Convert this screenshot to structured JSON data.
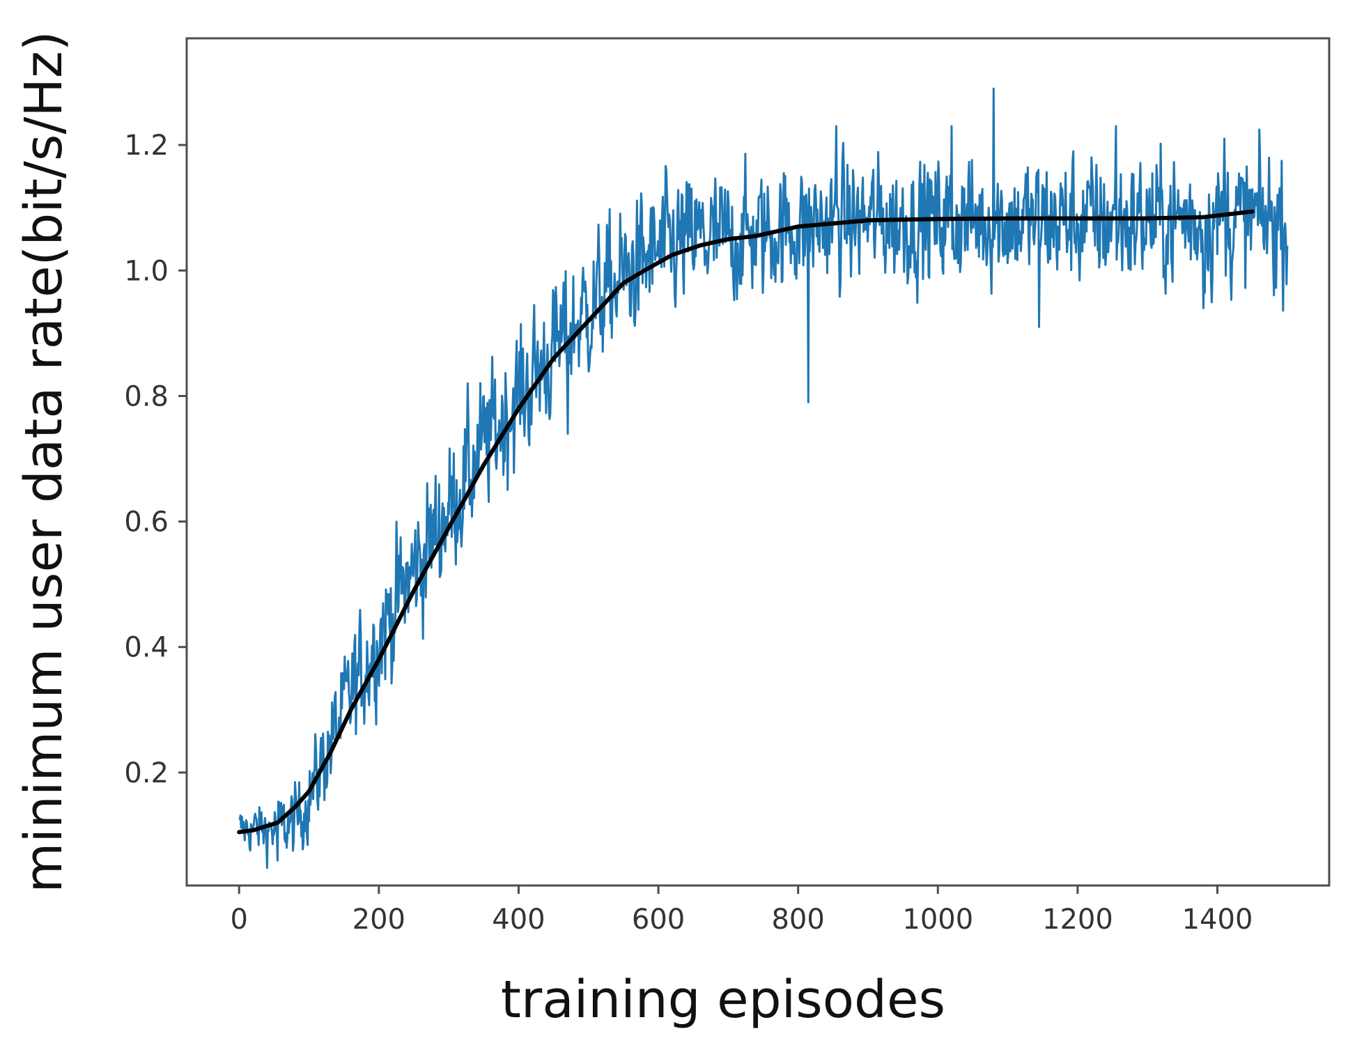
{
  "chart_data": {
    "type": "line",
    "xlabel": "training episodes",
    "ylabel": "minimum user data rate(bit/s/Hz)",
    "xlim": [
      -75,
      1560
    ],
    "ylim": [
      0.02,
      1.37
    ],
    "xticks": [
      0,
      200,
      400,
      600,
      800,
      1000,
      1200,
      1400
    ],
    "xtick_labels": [
      "0",
      "200",
      "400",
      "600",
      "800",
      "1000",
      "1200",
      "1400"
    ],
    "yticks": [
      0.2,
      0.4,
      0.6,
      0.8,
      1.0,
      1.2
    ],
    "ytick_labels": [
      "0.2",
      "0.4",
      "0.6",
      "0.8",
      "1.0",
      "1.2"
    ],
    "grid": false,
    "legend": "none",
    "series": [
      {
        "role": "raw",
        "color": "#1f77b4",
        "x_start": 0,
        "x_end": 1500,
        "num_points": 1500,
        "trend": {
          "x": [
            0,
            50,
            80,
            100,
            150,
            200,
            250,
            300,
            350,
            400,
            450,
            500,
            550,
            600,
            650,
            700,
            750,
            800,
            900,
            1000,
            1100,
            1200,
            1300,
            1400,
            1500
          ],
          "y": [
            0.11,
            0.11,
            0.12,
            0.16,
            0.3,
            0.42,
            0.52,
            0.62,
            0.72,
            0.8,
            0.87,
            0.94,
            0.99,
            1.03,
            1.05,
            1.05,
            1.06,
            1.07,
            1.08,
            1.08,
            1.08,
            1.08,
            1.08,
            1.08,
            1.08
          ]
        },
        "noise_amplitude": [
          {
            "x": 0,
            "amp": 0.015
          },
          {
            "x": 100,
            "amp": 0.03
          },
          {
            "x": 200,
            "amp": 0.05
          },
          {
            "x": 600,
            "amp": 0.05
          },
          {
            "x": 800,
            "amp": 0.045
          },
          {
            "x": 1500,
            "amp": 0.05
          }
        ],
        "spikes": [
          {
            "x": 815,
            "y": 0.79
          },
          {
            "x": 1080,
            "y": 1.29
          },
          {
            "x": 1020,
            "y": 1.23
          },
          {
            "x": 855,
            "y": 1.23
          },
          {
            "x": 1145,
            "y": 0.91
          },
          {
            "x": 1380,
            "y": 0.94
          },
          {
            "x": 1255,
            "y": 1.23
          },
          {
            "x": 1410,
            "y": 1.21
          },
          {
            "x": 470,
            "y": 0.74
          },
          {
            "x": 55,
            "y": 0.06
          }
        ]
      },
      {
        "role": "smoothed",
        "color": "#000000",
        "x": [
          0,
          20,
          55,
          80,
          100,
          130,
          160,
          200,
          250,
          300,
          350,
          400,
          450,
          500,
          550,
          580,
          620,
          660,
          700,
          740,
          800,
          900,
          1000,
          1100,
          1200,
          1300,
          1380,
          1450
        ],
        "y": [
          0.105,
          0.108,
          0.12,
          0.145,
          0.17,
          0.23,
          0.3,
          0.38,
          0.49,
          0.59,
          0.69,
          0.78,
          0.86,
          0.92,
          0.98,
          1.0,
          1.025,
          1.04,
          1.05,
          1.055,
          1.07,
          1.08,
          1.082,
          1.083,
          1.083,
          1.083,
          1.085,
          1.094
        ]
      }
    ]
  }
}
